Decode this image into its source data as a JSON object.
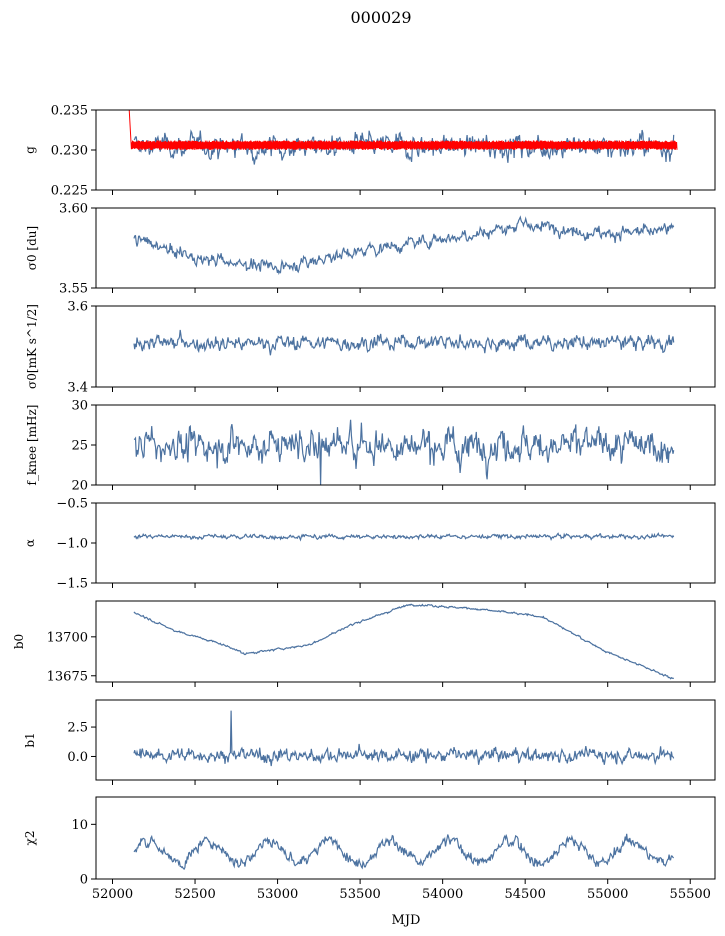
{
  "figure": {
    "title": "000029",
    "xlabel": "MJD"
  },
  "colors": {
    "series": "#4c72a0",
    "fit": "#ff0000"
  },
  "chart_data": [
    {
      "type": "line",
      "ylabel": "g",
      "xlim": [
        51900,
        55650
      ],
      "ylim": [
        0.225,
        0.235
      ],
      "yticks": [
        "0.225",
        "0.230",
        "0.235"
      ],
      "series": [
        {
          "x_range": [
            52130,
            55400
          ],
          "level": 0.2305,
          "noise": 0.0011,
          "kind": "jagged",
          "color": "#4c72a0"
        },
        {
          "x_range": [
            52100,
            55420
          ],
          "level": 0.2306,
          "noise": 0.0006,
          "kind": "band",
          "color": "#ff0000"
        }
      ]
    },
    {
      "type": "line",
      "ylabel": "σ0 [du]",
      "xlim": [
        51900,
        55650
      ],
      "ylim": [
        3.55,
        3.6
      ],
      "yticks": [
        "3.55",
        "3.60"
      ],
      "series": [
        {
          "x_range": [
            52130,
            55400
          ],
          "trend": [
            [
              52130,
              3.581
            ],
            [
              52500,
              3.569
            ],
            [
              53000,
              3.563
            ],
            [
              53600,
              3.575
            ],
            [
              54500,
              3.589
            ],
            [
              55000,
              3.584
            ],
            [
              55400,
              3.586
            ]
          ],
          "noise": 0.003,
          "color": "#4c72a0"
        }
      ]
    },
    {
      "type": "line",
      "ylabel": "σ0[mK s^1/2]",
      "xlim": [
        51900,
        55650
      ],
      "ylim": [
        3.4,
        3.6
      ],
      "yticks": [
        "3.4",
        "3.6"
      ],
      "series": [
        {
          "x_range": [
            52130,
            55400
          ],
          "level": 3.51,
          "noise": 0.014,
          "color": "#4c72a0"
        }
      ]
    },
    {
      "type": "line",
      "ylabel": "f_knee [mHz]",
      "xlim": [
        51900,
        55650
      ],
      "ylim": [
        20,
        30
      ],
      "yticks": [
        "20",
        "25",
        "30"
      ],
      "series": [
        {
          "x_range": [
            52130,
            55400
          ],
          "level": 25,
          "noise": 1.5,
          "color": "#4c72a0"
        }
      ]
    },
    {
      "type": "line",
      "ylabel": "α",
      "xlim": [
        51900,
        55650
      ],
      "ylim": [
        -1.5,
        -0.5
      ],
      "yticks": [
        "−1.5",
        "−1.0",
        "−0.5"
      ],
      "series": [
        {
          "x_range": [
            52130,
            55400
          ],
          "level": -0.92,
          "noise": 0.02,
          "color": "#4c72a0"
        }
      ]
    },
    {
      "type": "line",
      "ylabel": "b0",
      "xlim": [
        51900,
        55650
      ],
      "ylim": [
        13671,
        13723
      ],
      "yticks": [
        "13675",
        "13700"
      ],
      "series": [
        {
          "x_range": [
            52130,
            55400
          ],
          "trend": [
            [
              52130,
              13716
            ],
            [
              52350,
              13705
            ],
            [
              52700,
              13694
            ],
            [
              52800,
              13689
            ],
            [
              53200,
              13695
            ],
            [
              53450,
              13708
            ],
            [
              53800,
              13721
            ],
            [
              54200,
              13718
            ],
            [
              54600,
              13713
            ],
            [
              55000,
              13690
            ],
            [
              55400,
              13673
            ]
          ],
          "noise": 0.5,
          "color": "#4c72a0"
        }
      ]
    },
    {
      "type": "line",
      "ylabel": "b1",
      "xlim": [
        51900,
        55650
      ],
      "ylim": [
        -2,
        4.8
      ],
      "yticks": [
        "0.0",
        "2.5"
      ],
      "series": [
        {
          "x_range": [
            52130,
            55400
          ],
          "level": 0.1,
          "noise": 0.45,
          "color": "#4c72a0"
        }
      ]
    },
    {
      "type": "line",
      "ylabel": "χ2",
      "xlim": [
        51900,
        55650
      ],
      "ylim": [
        0,
        15
      ],
      "yticks": [
        "0",
        "10"
      ],
      "xticks": [
        "52000",
        "52500",
        "53000",
        "53500",
        "54000",
        "54500",
        "55000",
        "55500"
      ],
      "series": [
        {
          "x_range": [
            52130,
            55400
          ],
          "level": 5,
          "amplitude": 2,
          "period": 365,
          "noise": 0.8,
          "color": "#4c72a0"
        }
      ]
    }
  ]
}
